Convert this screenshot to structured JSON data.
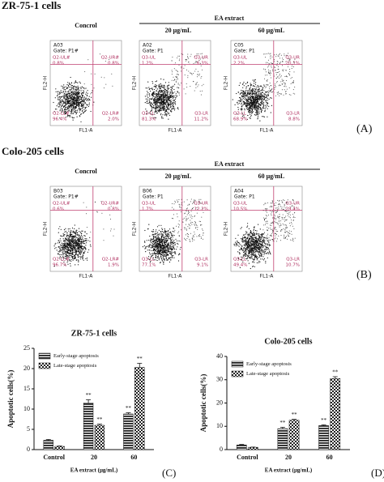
{
  "flow_panels": [
    {
      "title": "ZR-75-1 cells",
      "control": "Concrol",
      "group": "EA extract",
      "doses": [
        "20 μg/mL",
        "60 μg/mL"
      ],
      "label": "(A)",
      "plots": [
        {
          "id": "A03",
          "gate": "Gate: P1#",
          "xlabel": "FL1-A",
          "ylabel": "FL2-H",
          "quadrants": [
            [
              "Q2-UL#",
              "0.8%"
            ],
            [
              "Q2-UR#",
              "0.8%"
            ],
            [
              "Q2-LL#",
              "96.4%"
            ],
            [
              "Q2-LR#",
              "2.0%"
            ]
          ]
        },
        {
          "id": "A02",
          "gate": "Gate: P1",
          "xlabel": "FL1-A",
          "ylabel": "FL2-H",
          "quadrants": [
            [
              "Q3-UL",
              "1.2%"
            ],
            [
              "Q3-UR",
              "6.3%"
            ],
            [
              "Q3-LL",
              "81.3%"
            ],
            [
              "Q3-LR",
              "11.2%"
            ]
          ]
        },
        {
          "id": "C05",
          "gate": "Gate: P1",
          "xlabel": "FL1-A",
          "ylabel": "FL2-H",
          "quadrants": [
            [
              "Q3-UL",
              "2.2%"
            ],
            [
              "Q3-UR",
              "20.1%"
            ],
            [
              "Q3-LL",
              "68.9%"
            ],
            [
              "Q3-LR",
              "8.8%"
            ]
          ]
        }
      ]
    },
    {
      "title": "Colo-205 cells",
      "control": "Concrol",
      "group": "EA extract",
      "doses": [
        "20 μg/mL",
        "60 μg/mL"
      ],
      "label": "(B)",
      "plots": [
        {
          "id": "B03",
          "gate": "Gate: P1#",
          "xlabel": "FL1-A",
          "ylabel": "FL2-H",
          "quadrants": [
            [
              "Q2-UL#",
              "0.6%"
            ],
            [
              "Q2-UR#",
              "0.8%"
            ],
            [
              "Q2-LL#",
              "96.7%"
            ],
            [
              "Q2-LR#",
              "1.9%"
            ]
          ]
        },
        {
          "id": "B06",
          "gate": "Gate: P1",
          "xlabel": "FL1-A",
          "ylabel": "FL2-H",
          "quadrants": [
            [
              "Q3-UL",
              "1.7%"
            ],
            [
              "Q3-UR",
              "12.2%"
            ],
            [
              "Q3-LL",
              "77.1%"
            ],
            [
              "Q3-LR",
              "9.1%"
            ]
          ]
        },
        {
          "id": "A04",
          "gate": "Gate: P1",
          "xlabel": "FL1-A",
          "ylabel": "FL2-H",
          "quadrants": [
            [
              "Q3-UL",
              "10.5%"
            ],
            [
              "Q3-UR",
              "29.4%"
            ],
            [
              "Q3-LL",
              "49.4%"
            ],
            [
              "Q3-LR",
              "10.7%"
            ]
          ]
        }
      ]
    }
  ],
  "chart_data": [
    {
      "type": "bar",
      "title": "ZR-75-1 cells",
      "y_label": "Apoptotic cells(%)",
      "x_label": "EA extract (μg/mL)",
      "panel_label": "(C)",
      "categories": [
        "Control",
        "20",
        "60"
      ],
      "ylim": [
        0,
        25
      ],
      "yticks": [
        0,
        5,
        10,
        15,
        20,
        25
      ],
      "series": [
        {
          "name": "Early-stage apoptosis",
          "pattern": "hlines",
          "values": [
            2.3,
            11.5,
            8.8
          ],
          "errors": [
            0.2,
            0.8,
            0.3
          ],
          "significance": [
            null,
            "**",
            "**"
          ]
        },
        {
          "name": "Late-stage apoptosis",
          "pattern": "checker",
          "values": [
            0.8,
            6.0,
            20.3
          ],
          "errors": [
            0.1,
            0.3,
            1.0
          ],
          "significance": [
            null,
            "**",
            "**"
          ]
        }
      ]
    },
    {
      "type": "bar",
      "title": "Colo-205 cells",
      "y_label": "Apoptotic cells(%)",
      "x_label": "EA extract (μg/mL)",
      "panel_label": "(D)",
      "categories": [
        "Control",
        "20",
        "60"
      ],
      "ylim": [
        0,
        40
      ],
      "yticks": [
        0,
        10,
        20,
        30,
        40
      ],
      "series": [
        {
          "name": "Early-stage apoptosis",
          "pattern": "hlines",
          "values": [
            2.0,
            9.0,
            10.3
          ],
          "errors": [
            0.2,
            0.6,
            0.3
          ],
          "significance": [
            null,
            "**",
            "**"
          ]
        },
        {
          "name": "Late-stage apoptosis",
          "pattern": "checker",
          "values": [
            1.0,
            12.6,
            30.5
          ],
          "errors": [
            0.1,
            0.4,
            0.8
          ],
          "significance": [
            null,
            "**",
            "**"
          ]
        }
      ]
    }
  ]
}
